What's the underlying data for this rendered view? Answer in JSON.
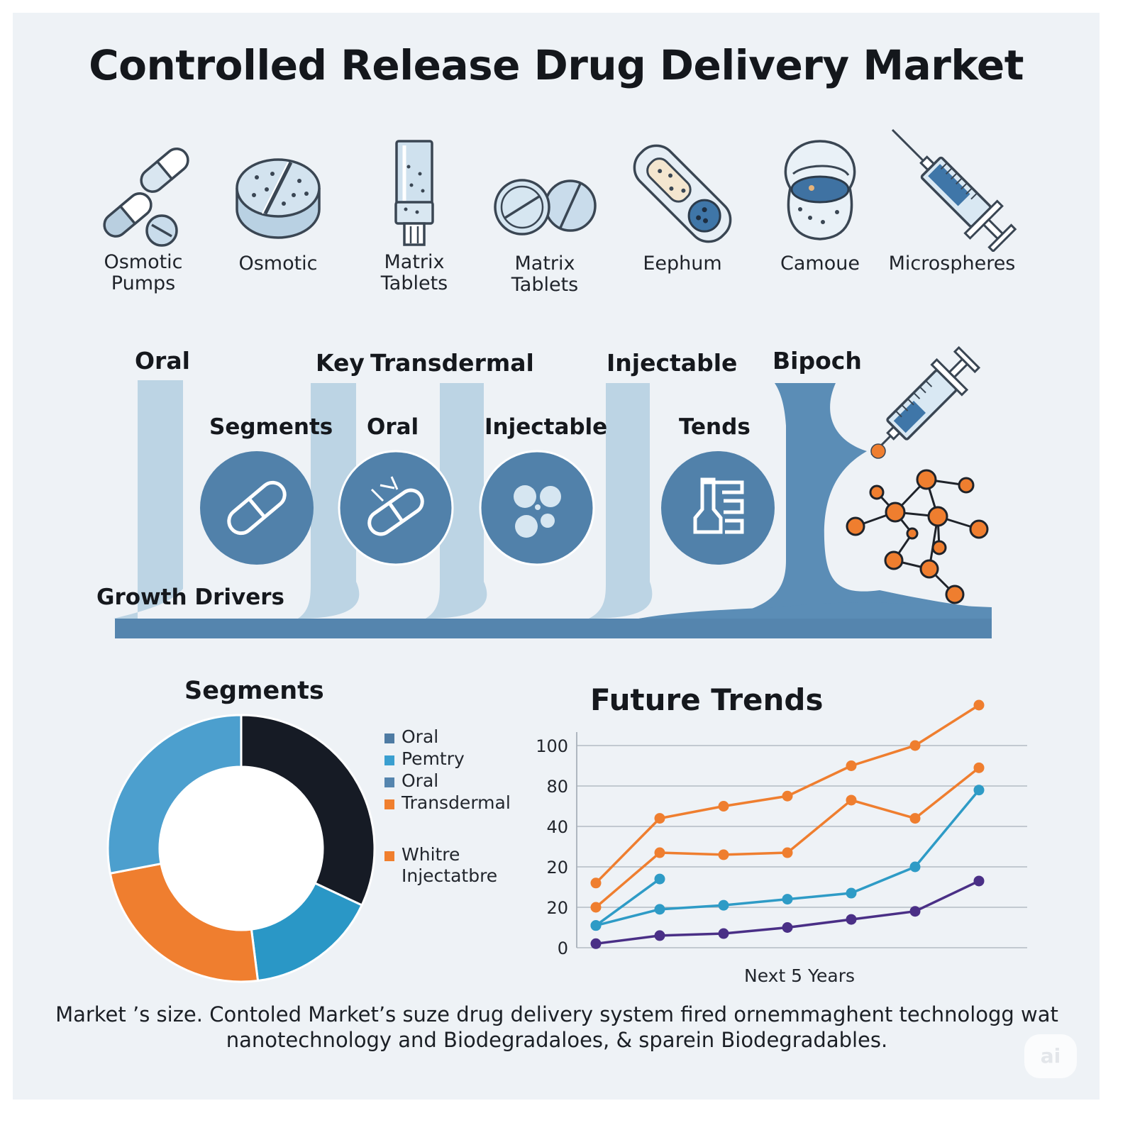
{
  "title": "Controlled Release Drug Delivery Market",
  "icons": [
    {
      "label": "Osmotic\nPumps",
      "icon": "capsules-icon"
    },
    {
      "label": "Osmotic",
      "icon": "tablet-icon"
    },
    {
      "label": "Matrix\nTablets",
      "icon": "vial-icon"
    },
    {
      "label": "Matrix\nTablets",
      "icon": "scored-tablets-icon"
    },
    {
      "label": "Eephum",
      "icon": "patch-icon"
    },
    {
      "label": "Camoue",
      "icon": "capsule-cup-icon"
    },
    {
      "label": "Microspheres",
      "icon": "syringe-icon"
    }
  ],
  "band": {
    "oral": "Oral",
    "key": "Key",
    "transdermal": "Transdermal",
    "injectable": "Injectable",
    "bipoch": "Bipoch",
    "segments": "Segments",
    "oral2": "Oral",
    "injectable2": "Injectable",
    "tends": "Tends",
    "growth_drivers": "Growth Drivers"
  },
  "segments_title": "Segments",
  "trends_title": "Future Trends",
  "legend": [
    {
      "label": "Oral",
      "color": "#4e7ba3"
    },
    {
      "label": "Pemtry",
      "color": "#3a9fd0"
    },
    {
      "label": "Oral",
      "color": "#5585ae"
    },
    {
      "label": "Transdermal",
      "color": "#f07f2e"
    },
    {
      "label": "Whitre\nInjectatbre",
      "color": "#f07f2e"
    }
  ],
  "chart_data": [
    {
      "type": "pie",
      "title": "Segments",
      "slices": [
        {
          "value": 32,
          "color": "#161b25"
        },
        {
          "value": 16,
          "color": "#2a97c6"
        },
        {
          "value": 24,
          "color": "#ef7e2f"
        },
        {
          "value": 28,
          "color": "#4c9fce"
        }
      ],
      "donut": true
    },
    {
      "type": "line",
      "title": "Future Trends",
      "xlabel": "Next 5 Years",
      "ytick_labels": [
        "0",
        "20",
        "20",
        "40",
        "80",
        "100"
      ],
      "grid": true,
      "series": [
        {
          "color": "#ef7e2f",
          "points": [
            [
              1,
              1.6
            ],
            [
              2,
              3.2
            ],
            [
              3,
              3.5
            ],
            [
              4,
              3.75
            ],
            [
              5,
              4.5
            ],
            [
              6,
              5.0
            ],
            [
              7,
              6.0
            ]
          ]
        },
        {
          "color": "#ef7e2f",
          "points": [
            [
              1,
              1.0
            ],
            [
              2,
              2.35
            ],
            [
              3,
              2.3
            ],
            [
              4,
              2.35
            ],
            [
              5,
              3.65
            ],
            [
              6,
              3.2
            ],
            [
              7,
              4.45
            ]
          ]
        },
        {
          "color": "#2e9bc6",
          "points": [
            [
              1,
              0.55
            ],
            [
              2,
              1.7
            ]
          ]
        },
        {
          "color": "#2e9bc6",
          "points": [
            [
              1,
              0.55
            ],
            [
              2,
              0.95
            ],
            [
              3,
              1.05
            ],
            [
              4,
              1.2
            ],
            [
              5,
              1.35
            ],
            [
              6,
              2.0
            ],
            [
              7,
              3.9
            ]
          ]
        },
        {
          "color": "#4a2f86",
          "points": [
            [
              1,
              0.1
            ],
            [
              2,
              0.3
            ],
            [
              3,
              0.35
            ],
            [
              4,
              0.5
            ],
            [
              5,
              0.7
            ],
            [
              6,
              0.9
            ],
            [
              7,
              1.65
            ]
          ]
        }
      ]
    }
  ],
  "footer_line1": "Market ’s size. Contoled Market’s suze drug delivery system fired ornemmaghent technologg wat",
  "footer_line2": "nanotechnology and Biodegradaloes, & sparein Biodegradables.",
  "watermark": "ai"
}
